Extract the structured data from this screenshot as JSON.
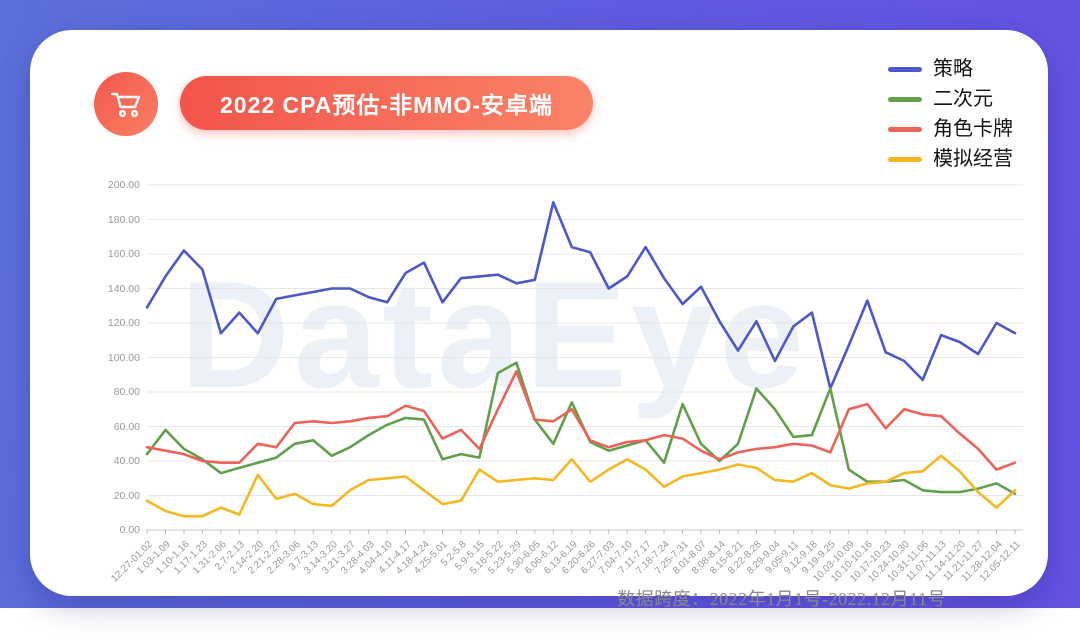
{
  "header": {
    "title": "2022 CPA预估-非MMO-安卓端",
    "icon": "shopping-cart",
    "pill_colors": [
      "#f2544b",
      "#fa8367"
    ]
  },
  "watermark": "DataEye",
  "footer": {
    "label": "数据跨度：2022年1月1号-2022.12月11号"
  },
  "colors": {
    "background_start": "#5b70da",
    "background_end": "#6452e3",
    "card": "#ffffff",
    "grid": "#e7e7e7",
    "axis": "#c8c8c8",
    "tick_text": "#999999"
  },
  "chart_data": {
    "type": "line",
    "title": "2022 CPA预估-非MMO-安卓端",
    "xlabel": "",
    "ylabel": "",
    "ylim": [
      0,
      200
    ],
    "ytick_step": 20,
    "grid": true,
    "legend_position": "top-right",
    "categories": [
      "12.27-01.02",
      "1.03-1.09",
      "1.10-1.16",
      "1.17-1.23",
      "1.31-2.06",
      "2.7-2.13",
      "2.14-2.20",
      "2.21-2.27",
      "2.28-3.06",
      "3.7-3.13",
      "3.14-3.20",
      "3.21-3.27",
      "3.28-4.03",
      "4.04-4.10",
      "4.11-4.17",
      "4.18-4.24",
      "4.25-5.01",
      "5.2-5.8",
      "5.9-5.15",
      "5.16-5.22",
      "5.23-5.29",
      "5.30-6.05",
      "6.06-6.12",
      "6.13-6.19",
      "6.20-6.26",
      "6.27-7.03",
      "7.04-7.10",
      "7.11-7.17",
      "7.18-7.24",
      "7.25-7.31",
      "8.01-8.07",
      "8.08-8.14",
      "8.15-8.21",
      "8.22-8.28",
      "8.29-9.04",
      "9.05-9.11",
      "9.12-9.18",
      "9.19-9.25",
      "10.03-10.09",
      "10.10-10.16",
      "10.17-10.23",
      "10.24-10.30",
      "10.31-11.06",
      "11.07-11.13",
      "11.14-11.20",
      "11.21-11.27",
      "11.28-12.04",
      "12.05-12.11"
    ],
    "series": [
      {
        "name": "策略",
        "color": "#4c59c8",
        "values": [
          129,
          147,
          162,
          151,
          114,
          126,
          114,
          134,
          136,
          138,
          140,
          140,
          135,
          132,
          149,
          155,
          132,
          146,
          147,
          148,
          143,
          145,
          190,
          164,
          161,
          140,
          147,
          164,
          146,
          131,
          141,
          121,
          104,
          121,
          98,
          118,
          126,
          82,
          107,
          133,
          103,
          98,
          87,
          113,
          109,
          102,
          120,
          114
        ]
      },
      {
        "name": "二次元",
        "color": "#61a04d",
        "values": [
          44,
          58,
          47,
          41,
          33,
          36,
          39,
          42,
          50,
          52,
          43,
          48,
          55,
          61,
          65,
          64,
          41,
          44,
          42,
          91,
          97,
          64,
          50,
          74,
          51,
          46,
          49,
          52,
          39,
          73,
          50,
          40,
          50,
          82,
          70,
          54,
          55,
          82,
          35,
          28,
          28,
          29,
          23,
          22,
          22,
          24,
          27,
          21
        ]
      },
      {
        "name": "角色卡牌",
        "color": "#ea6459",
        "values": [
          48,
          46,
          44,
          40,
          39,
          39,
          50,
          48,
          62,
          63,
          62,
          63,
          65,
          66,
          72,
          69,
          53,
          58,
          47,
          70,
          92,
          64,
          63,
          70,
          52,
          48,
          51,
          52,
          55,
          53,
          46,
          41,
          45,
          47,
          48,
          50,
          49,
          45,
          70,
          73,
          59,
          70,
          67,
          66,
          56,
          47,
          35,
          39
        ]
      },
      {
        "name": "模拟经营",
        "color": "#f5b822",
        "values": [
          17,
          11,
          8,
          8,
          13,
          9,
          32,
          18,
          21,
          15,
          14,
          23,
          29,
          30,
          31,
          23,
          15,
          17,
          35,
          28,
          29,
          30,
          29,
          41,
          28,
          35,
          41,
          35,
          25,
          31,
          33,
          35,
          38,
          36,
          29,
          28,
          33,
          26,
          24,
          27,
          28,
          33,
          34,
          43,
          34,
          22,
          13,
          23
        ]
      }
    ]
  }
}
